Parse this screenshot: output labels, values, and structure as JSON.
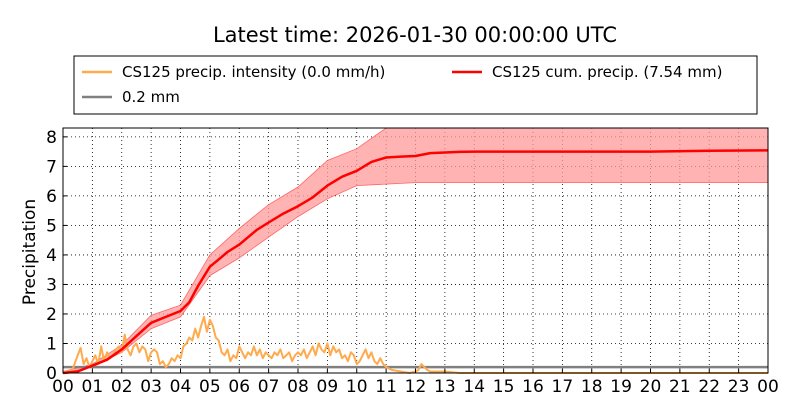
{
  "chart_data": {
    "type": "line",
    "title": "Latest time: 2026-01-30 00:00:00 UTC",
    "xlabel": "",
    "ylabel": "Precipitation",
    "xlim": [
      0,
      24
    ],
    "ylim": [
      0,
      8.3
    ],
    "x_tick_labels": [
      "00",
      "01",
      "02",
      "03",
      "04",
      "05",
      "06",
      "07",
      "08",
      "09",
      "10",
      "11",
      "12",
      "13",
      "14",
      "15",
      "16",
      "17",
      "18",
      "19",
      "20",
      "21",
      "22",
      "23",
      "00"
    ],
    "y_ticks": [
      0,
      1,
      2,
      3,
      4,
      5,
      6,
      7,
      8
    ],
    "grid": true,
    "legend_position": "top",
    "legend": [
      {
        "label": "CS125 precip. intensity (0.0 mm/h)",
        "color": "#ffaa4d"
      },
      {
        "label": "CS125 cum. precip. (7.54 mm)",
        "color": "#ff0000"
      },
      {
        "label": "0.2 mm",
        "color": "#808080"
      }
    ],
    "series": [
      {
        "name": "CS125 precip. intensity (0.0 mm/h)",
        "color": "#ffaa4d",
        "x": [
          0,
          0.3,
          0.5,
          0.6,
          0.7,
          0.8,
          0.9,
          1.0,
          1.1,
          1.2,
          1.3,
          1.4,
          1.5,
          1.6,
          1.7,
          1.8,
          1.9,
          2.0,
          2.1,
          2.2,
          2.3,
          2.4,
          2.5,
          2.6,
          2.7,
          2.8,
          2.9,
          3.0,
          3.1,
          3.2,
          3.3,
          3.4,
          3.5,
          3.6,
          3.7,
          3.8,
          3.9,
          4.0,
          4.1,
          4.2,
          4.3,
          4.4,
          4.5,
          4.6,
          4.7,
          4.8,
          4.9,
          5.0,
          5.1,
          5.2,
          5.3,
          5.4,
          5.5,
          5.6,
          5.7,
          5.8,
          5.9,
          6.0,
          6.1,
          6.2,
          6.3,
          6.4,
          6.5,
          6.6,
          6.7,
          6.8,
          6.9,
          7.0,
          7.1,
          7.2,
          7.3,
          7.4,
          7.5,
          7.6,
          7.7,
          7.8,
          7.9,
          8.0,
          8.1,
          8.2,
          8.3,
          8.4,
          8.5,
          8.6,
          8.7,
          8.8,
          8.9,
          9.0,
          9.1,
          9.2,
          9.3,
          9.4,
          9.5,
          9.6,
          9.7,
          9.8,
          9.9,
          10.0,
          10.1,
          10.2,
          10.3,
          10.4,
          10.5,
          10.6,
          10.7,
          10.8,
          10.9,
          11.0,
          11.2,
          11.5,
          11.8,
          12.0,
          12.1,
          12.2,
          12.3,
          12.4,
          12.5,
          12.7,
          13.0,
          13.5,
          14,
          16,
          18,
          20,
          22,
          24
        ],
        "values": [
          0.05,
          0.05,
          0.6,
          0.85,
          0.3,
          0.5,
          0.2,
          0.4,
          0.6,
          0.3,
          0.9,
          0.4,
          0.7,
          0.5,
          0.6,
          0.8,
          0.9,
          0.7,
          1.3,
          0.8,
          0.6,
          0.9,
          1.0,
          0.7,
          0.9,
          0.8,
          0.4,
          0.7,
          0.8,
          0.7,
          0.3,
          0.4,
          0.2,
          0.3,
          0.5,
          0.4,
          0.6,
          0.5,
          0.9,
          1.0,
          1.2,
          1.1,
          1.5,
          1.2,
          1.6,
          1.9,
          1.4,
          1.8,
          1.6,
          1.2,
          1.1,
          0.7,
          0.6,
          0.8,
          0.4,
          0.6,
          0.5,
          0.9,
          0.7,
          0.5,
          0.7,
          0.6,
          0.9,
          0.6,
          0.8,
          0.5,
          0.7,
          0.6,
          0.5,
          0.7,
          0.6,
          0.8,
          0.5,
          0.6,
          0.7,
          0.4,
          0.6,
          0.7,
          0.6,
          0.8,
          0.5,
          0.7,
          0.9,
          0.6,
          1.0,
          0.8,
          0.7,
          1.0,
          0.6,
          0.9,
          0.7,
          0.8,
          0.5,
          0.6,
          0.4,
          0.7,
          0.6,
          0.3,
          0.4,
          0.6,
          0.8,
          0.5,
          0.7,
          0.4,
          0.3,
          0.5,
          0.3,
          0.2,
          0.1,
          0.05,
          0.0,
          0.05,
          0.1,
          0.3,
          0.2,
          0.1,
          0.05,
          0.05,
          0.05,
          0.0,
          0.0,
          0.0,
          0.0,
          0.0,
          0.0,
          0.0
        ]
      },
      {
        "name": "CS125 cum. precip. (7.54 mm)",
        "color": "#ff0000",
        "x": [
          0,
          0.5,
          1.0,
          1.5,
          2.0,
          2.5,
          3.0,
          3.5,
          4.0,
          4.3,
          4.6,
          5.0,
          5.3,
          5.6,
          6.0,
          6.3,
          6.6,
          7.0,
          7.5,
          8.0,
          8.5,
          9.0,
          9.5,
          10.0,
          10.5,
          11.0,
          11.5,
          12.0,
          12.5,
          13.0,
          13.5,
          14,
          16,
          18,
          20,
          22,
          24
        ],
        "values": [
          0.0,
          0.05,
          0.25,
          0.45,
          0.8,
          1.25,
          1.7,
          1.9,
          2.1,
          2.4,
          2.95,
          3.6,
          3.85,
          4.1,
          4.35,
          4.6,
          4.85,
          5.1,
          5.4,
          5.65,
          5.95,
          6.35,
          6.65,
          6.85,
          7.15,
          7.3,
          7.33,
          7.35,
          7.45,
          7.47,
          7.49,
          7.5,
          7.5,
          7.5,
          7.5,
          7.53,
          7.54
        ]
      },
      {
        "name": "0.2 mm",
        "color": "#808080",
        "x": [
          0,
          24
        ],
        "values": [
          0.2,
          0.2
        ]
      }
    ],
    "uncertainty_band": {
      "color": "#ff9999",
      "x": [
        0,
        1,
        2,
        3,
        4,
        5,
        6,
        7,
        8,
        9,
        10,
        11,
        12,
        13,
        14,
        16,
        18,
        20,
        22,
        24
      ],
      "lower": [
        0.0,
        0.2,
        0.7,
        1.5,
        1.9,
        3.3,
        3.9,
        4.6,
        5.3,
        5.9,
        6.35,
        6.4,
        6.45,
        6.45,
        6.45,
        6.45,
        6.45,
        6.45,
        6.45,
        6.45
      ],
      "upper": [
        0.05,
        0.3,
        0.95,
        1.95,
        2.3,
        4.0,
        4.9,
        5.7,
        6.3,
        7.2,
        7.6,
        8.3,
        8.3,
        8.3,
        8.3,
        8.3,
        8.3,
        8.3,
        8.3,
        8.3
      ]
    }
  }
}
